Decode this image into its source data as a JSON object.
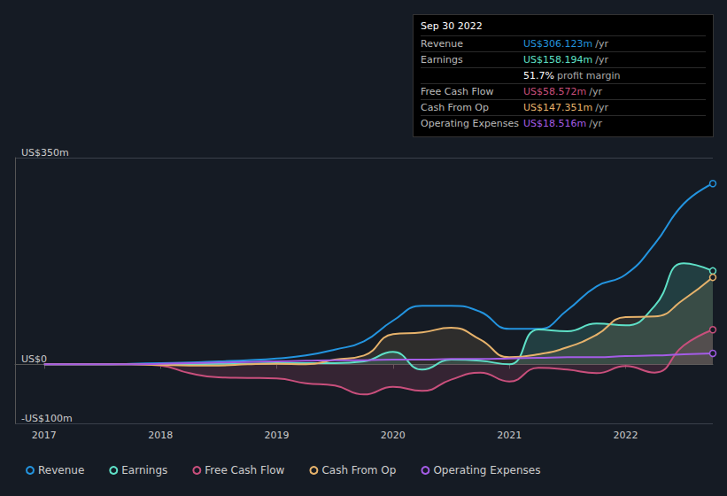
{
  "chart_data": {
    "type": "line",
    "x": [
      2017,
      2017.25,
      2017.5,
      2017.75,
      2018,
      2018.25,
      2018.5,
      2018.75,
      2019,
      2019.25,
      2019.5,
      2019.75,
      2020,
      2020.25,
      2020.5,
      2020.75,
      2021,
      2021.25,
      2021.5,
      2021.75,
      2022,
      2022.25,
      2022.5,
      2022.75
    ],
    "series": [
      {
        "name": "Revenue",
        "color": "#2394df",
        "values": [
          0,
          0,
          0,
          1,
          2,
          3,
          5,
          7,
          10,
          15,
          25,
          39,
          74,
          99,
          99,
          89,
          60,
          60,
          92,
          132,
          152,
          204,
          272,
          306.123
        ]
      },
      {
        "name": "Earnings",
        "color": "#5ee0c7",
        "values": [
          0,
          0,
          0,
          0,
          0,
          0,
          1,
          1,
          2,
          2,
          2,
          5,
          21,
          -9,
          8,
          6,
          0,
          59,
          56,
          69,
          66,
          99,
          171,
          158.194
        ]
      },
      {
        "name": "Free Cash Flow",
        "color": "#c94f7c",
        "values": [
          0,
          0,
          0,
          0,
          -2,
          -15,
          -22,
          -23,
          -24,
          -32,
          -36,
          -51,
          -38,
          -45,
          -26,
          -14,
          -29,
          -6,
          -9,
          -15,
          -3,
          -14,
          32,
          58.572
        ]
      },
      {
        "name": "Cash From Op",
        "color": "#e6b26b",
        "values": [
          0,
          0,
          0,
          0,
          -1,
          -2,
          -2,
          0,
          1,
          0,
          8,
          15,
          51,
          54,
          62,
          42,
          12,
          17,
          29,
          50,
          80,
          81,
          110,
          147.351
        ]
      },
      {
        "name": "Operating Expenses",
        "color": "#a45ce6",
        "values": [
          0,
          0,
          0,
          0,
          1,
          2,
          3,
          4,
          5,
          6,
          7,
          7,
          8,
          8,
          9,
          9,
          10,
          11,
          12,
          12,
          14,
          15,
          17,
          18.516
        ]
      }
    ],
    "xlim": [
      2016.75,
      2022.75
    ],
    "xticks": [
      2017,
      2018,
      2019,
      2020,
      2021,
      2022
    ],
    "ylim": [
      -100,
      350
    ],
    "yticks": [
      {
        "value": -100,
        "label": "-US$100m"
      },
      {
        "value": 0,
        "label": "US$0"
      },
      {
        "value": 350,
        "label": "US$350m"
      }
    ],
    "grid": true,
    "legend": "bottom-left",
    "annotation": {
      "title": "Sep 30 2022",
      "rows": [
        {
          "label": "Revenue",
          "value": "US$306.123m",
          "unit": "/yr"
        },
        {
          "label": "Earnings",
          "value": "US$158.194m",
          "unit": "/yr"
        },
        {
          "label": "",
          "value": "51.7%",
          "unit": "profit margin"
        },
        {
          "label": "Free Cash Flow",
          "value": "US$58.572m",
          "unit": "/yr"
        },
        {
          "label": "Cash From Op",
          "value": "US$147.351m",
          "unit": "/yr"
        },
        {
          "label": "Operating Expenses",
          "value": "US$18.516m",
          "unit": "/yr"
        }
      ]
    }
  }
}
